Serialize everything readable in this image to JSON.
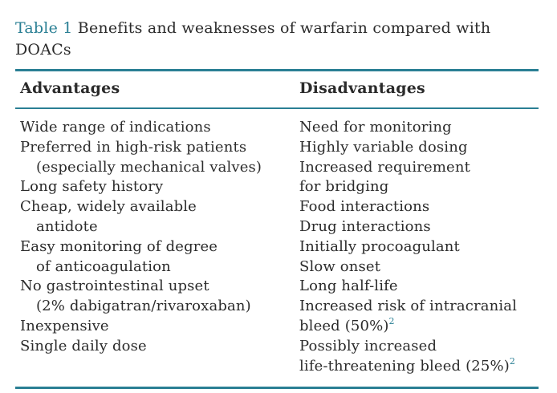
{
  "caption": {
    "table_label": "Table 1",
    "title": "Benefits and weaknesses of warfarin compared with DOACs"
  },
  "colors": {
    "accent": "#2a7f94",
    "text": "#2b2b2b"
  },
  "headers": {
    "advantages": "Advantages",
    "disadvantages": "Disadvantages"
  },
  "advantages": [
    "Wide range of indications",
    "Preferred in high-risk patients",
    "(especially mechanical valves)",
    "Long safety history",
    "Cheap, widely available",
    "antidote",
    "Easy monitoring of degree",
    "of anticoagulation",
    "No gastrointestinal upset",
    "(2% dabigatran/rivaroxaban)",
    "Inexpensive",
    "Single daily dose"
  ],
  "disadvantages": [
    "Need for monitoring",
    "Highly variable dosing",
    "Increased requirement",
    "for bridging",
    "Food interactions",
    "Drug interactions",
    "Initially procoagulant",
    "Slow onset",
    "Long half-life",
    "Increased risk of intracranial",
    "bleed (50%)",
    "Possibly increased",
    "life-threatening bleed (25%)"
  ],
  "refs": {
    "bleed_50": "2",
    "bleed_25": "2"
  }
}
